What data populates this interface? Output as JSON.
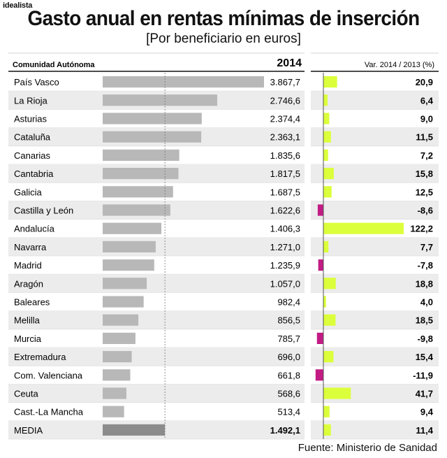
{
  "brand": "idealista",
  "title": "Gasto anual en rentas mínimas de inserción",
  "subtitle": "[Por beneficiario en euros]",
  "source": "Fuente: Ministerio de Sanidad",
  "colors": {
    "bar": "#b8b8b8",
    "bar_avg": "#8c8c8c",
    "var_pos": "#dbff3a",
    "var_neg": "#c21b84",
    "stripe": "#ececec"
  },
  "chart_data": {
    "type": "table",
    "headers": {
      "region": "Comunidad Autónoma",
      "value": "2014",
      "change": "Var. 2014 / 2013 (%)"
    },
    "rows": [
      {
        "region": "País Vasco",
        "value": 3867.7,
        "value_label": "3.867,7",
        "change": 20.9,
        "change_label": "20,9"
      },
      {
        "region": "La Rioja",
        "value": 2746.6,
        "value_label": "2.746,6",
        "change": 6.4,
        "change_label": "6,4"
      },
      {
        "region": "Asturias",
        "value": 2374.4,
        "value_label": "2.374,4",
        "change": 9.0,
        "change_label": "9,0"
      },
      {
        "region": "Cataluña",
        "value": 2363.1,
        "value_label": "2.363,1",
        "change": 11.5,
        "change_label": "11,5"
      },
      {
        "region": "Canarias",
        "value": 1835.6,
        "value_label": "1.835,6",
        "change": 7.2,
        "change_label": "7,2"
      },
      {
        "region": "Cantabria",
        "value": 1817.5,
        "value_label": "1.817,5",
        "change": 15.8,
        "change_label": "15,8"
      },
      {
        "region": "Galicia",
        "value": 1687.5,
        "value_label": "1.687,5",
        "change": 12.5,
        "change_label": "12,5"
      },
      {
        "region": "Castilla y León",
        "value": 1622.6,
        "value_label": "1.622,6",
        "change": -8.6,
        "change_label": "-8,6"
      },
      {
        "region": "Andalucía",
        "value": 1406.3,
        "value_label": "1.406,3",
        "change": 122.2,
        "change_label": "122,2"
      },
      {
        "region": "Navarra",
        "value": 1271.0,
        "value_label": "1.271,0",
        "change": 7.7,
        "change_label": "7,7"
      },
      {
        "region": "Madrid",
        "value": 1235.9,
        "value_label": "1.235,9",
        "change": -7.8,
        "change_label": "-7,8"
      },
      {
        "region": "Aragón",
        "value": 1057.0,
        "value_label": "1.057,0",
        "change": 18.8,
        "change_label": "18,8"
      },
      {
        "region": "Baleares",
        "value": 982.4,
        "value_label": "982,4",
        "change": 4.0,
        "change_label": "4,0"
      },
      {
        "region": "Melilla",
        "value": 856.5,
        "value_label": "856,5",
        "change": 18.5,
        "change_label": "18,5"
      },
      {
        "region": "Murcia",
        "value": 785.7,
        "value_label": "785,7",
        "change": -9.8,
        "change_label": "-9,8"
      },
      {
        "region": "Extremadura",
        "value": 696.0,
        "value_label": "696,0",
        "change": 15.4,
        "change_label": "15,4"
      },
      {
        "region": "Com. Valenciana",
        "value": 661.8,
        "value_label": "661,8",
        "change": -11.9,
        "change_label": "-11,9"
      },
      {
        "region": "Ceuta",
        "value": 568.6,
        "value_label": "568,6",
        "change": 41.7,
        "change_label": "41,7"
      },
      {
        "region": "Cast.-La Mancha",
        "value": 513.4,
        "value_label": "513,4",
        "change": 9.4,
        "change_label": "9,4"
      }
    ],
    "average": {
      "region": "MEDIA",
      "value": 1492.1,
      "value_label": "1.492,1",
      "change": 11.4,
      "change_label": "11,4"
    },
    "value_xlim": [
      0,
      4000
    ],
    "change_xlim": [
      -15,
      130
    ]
  }
}
